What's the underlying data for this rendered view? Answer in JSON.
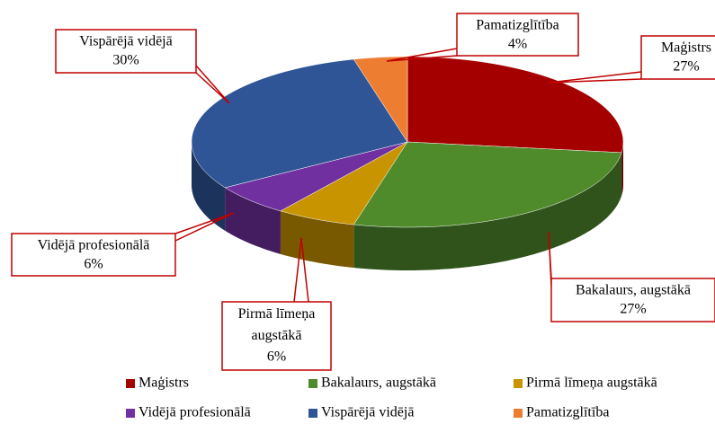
{
  "chart_data": {
    "type": "pie",
    "categories": [
      "Maģistrs",
      "Bakalaurs, augstākā",
      "Pirmā līmeņa augstākā",
      "Vidējā profesionālā",
      "Vispārējā vidējā",
      "Pamatizglītība"
    ],
    "values": [
      27,
      27,
      6,
      6,
      30,
      4
    ],
    "value_labels": [
      "27%",
      "27%",
      "6%",
      "6%",
      "30%",
      "4%"
    ],
    "colors": [
      "#a50000",
      "#4f8a2b",
      "#c89400",
      "#7030a0",
      "#2f5597",
      "#ed7d31"
    ],
    "legend": "bottom"
  }
}
